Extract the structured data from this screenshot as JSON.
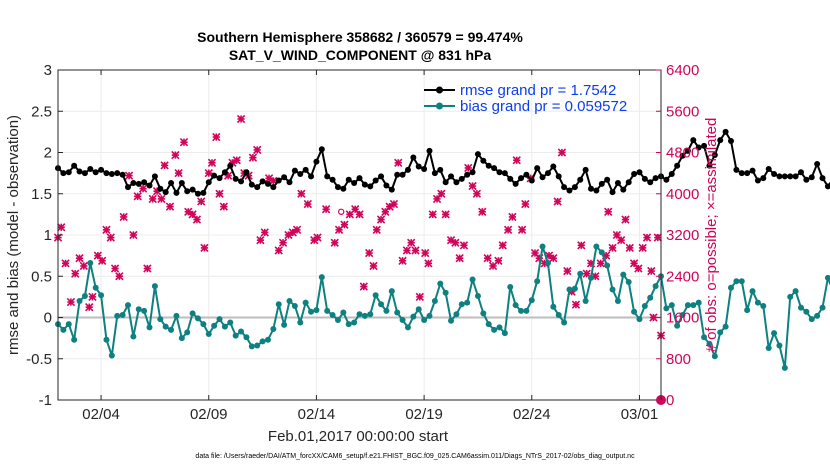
{
  "colors": {
    "rmse": "#000000",
    "bias": "#0f8080",
    "obs": "#d1045a",
    "legend_text": "#0b3df0",
    "zero_line": "#bdbdbd"
  },
  "chart_data": {
    "type": "line",
    "title_line1": "Southern Hemisphere 358682 / 360579 = 99.474%",
    "title_line2": "SAT_V_WIND_COMPONENT @ 831 hPa",
    "xlabel": "Feb.01,2017 00:00:00 start",
    "ylabel_left": "rmse and bias (model - observation)",
    "ylabel_right": "# of obs: o=possible; ×=assimilated",
    "footnote": "data file: /Users/raeder/DAI/ATM_forcXX/CAM6_setup/f.e21.FHIST_BGC.f09_025.CAM6assim.011/Diags_NTrS_2017-02/obs_diag_output.nc",
    "xlim": [
      1,
      29
    ],
    "ylim_left": [
      -1,
      3
    ],
    "ylim_right": [
      0,
      6400
    ],
    "x_ticks": [
      3,
      8,
      13,
      18,
      23,
      28
    ],
    "x_tick_labels": [
      "02/04",
      "02/09",
      "02/14",
      "02/19",
      "02/24",
      "03/01"
    ],
    "y_left_ticks": [
      -1,
      -0.5,
      0,
      0.5,
      1,
      1.5,
      2,
      2.5,
      3
    ],
    "y_left_tick_labels": [
      "-1",
      "-0.5",
      "0",
      "0.5",
      "1",
      "1.5",
      "2",
      "2.5",
      "3"
    ],
    "y_right_ticks": [
      0,
      800,
      1600,
      2400,
      3200,
      4000,
      4800,
      5600,
      6400
    ],
    "y_right_tick_labels": [
      "0",
      "800",
      "1600",
      "2400",
      "3200",
      "4000",
      "4800",
      "5600",
      "6400"
    ],
    "legend": [
      {
        "name": "rmse grand pr = 1.7542",
        "series": "rmse"
      },
      {
        "name": "bias grand pr = 0.059572",
        "series": "bias"
      }
    ],
    "x_start": 1.0,
    "x_step": 0.25,
    "series": [
      {
        "name": "rmse",
        "values": [
          1.81,
          1.75,
          1.76,
          1.84,
          1.77,
          1.75,
          1.8,
          1.76,
          1.79,
          1.75,
          1.74,
          1.75,
          1.73,
          1.58,
          1.63,
          1.62,
          1.64,
          1.6,
          1.71,
          1.56,
          1.52,
          1.63,
          1.51,
          1.63,
          1.53,
          1.55,
          1.5,
          1.51,
          1.64,
          1.72,
          1.69,
          1.76,
          1.84,
          1.68,
          1.65,
          1.76,
          1.61,
          1.58,
          1.65,
          1.62,
          1.58,
          1.66,
          1.7,
          1.64,
          1.78,
          1.74,
          1.79,
          1.71,
          1.89,
          2.04,
          1.71,
          1.67,
          1.58,
          1.56,
          1.67,
          1.63,
          1.69,
          1.61,
          1.59,
          1.66,
          1.71,
          1.6,
          1.55,
          1.73,
          1.73,
          1.79,
          1.94,
          1.83,
          1.8,
          2.02,
          1.75,
          1.79,
          1.64,
          1.71,
          1.64,
          1.68,
          1.73,
          1.76,
          1.98,
          1.9,
          1.84,
          1.81,
          1.76,
          1.75,
          1.68,
          1.62,
          1.69,
          1.73,
          1.66,
          1.81,
          1.7,
          1.75,
          1.83,
          1.71,
          1.58,
          1.54,
          1.58,
          1.67,
          1.79,
          1.56,
          1.54,
          1.62,
          1.67,
          1.52,
          1.63,
          1.55,
          1.64,
          1.74,
          1.76,
          1.68,
          1.64,
          1.69,
          1.71,
          1.67,
          1.74,
          1.84,
          1.96,
          2.02,
          2.15,
          2.06,
          2.08,
          1.84,
          1.97,
          2.15,
          2.25,
          2.14,
          1.79,
          1.75,
          1.75,
          1.78,
          1.66,
          1.69,
          1.8,
          1.74,
          1.71,
          1.71,
          1.71,
          1.71,
          1.76,
          1.67,
          1.7,
          1.86,
          1.69,
          1.59,
          1.68,
          1.91,
          1.63,
          1.7,
          2.05,
          1.84,
          1.64,
          1.69,
          1.68,
          1.7,
          1.74,
          1.84,
          1.76,
          1.73,
          1.75,
          1.7,
          1.65,
          1.69,
          1.82,
          1.93,
          1.84,
          1.72,
          1.66
        ]
      },
      {
        "name": "bias",
        "values": [
          -0.08,
          -0.15,
          -0.08,
          -0.27,
          0.2,
          0.26,
          0.66,
          0.36,
          0.27,
          -0.27,
          -0.46,
          0.02,
          0.03,
          0.15,
          -0.23,
          0.1,
          0.08,
          -0.12,
          0.38,
          -0.02,
          -0.11,
          -0.15,
          0.02,
          -0.25,
          -0.18,
          0.05,
          -0.01,
          -0.08,
          -0.2,
          -0.1,
          -0.02,
          -0.11,
          -0.06,
          -0.22,
          -0.17,
          -0.24,
          -0.35,
          -0.34,
          -0.29,
          -0.27,
          -0.14,
          0.16,
          -0.09,
          0.2,
          0.14,
          -0.06,
          0.18,
          0.07,
          0.09,
          0.49,
          0.08,
          0.03,
          -0.03,
          0.06,
          -0.08,
          -0.06,
          0.04,
          0.02,
          0.04,
          0.27,
          0.16,
          0.08,
          0.32,
          0.06,
          -0.03,
          -0.12,
          0.01,
          0.1,
          -0.03,
          0.02,
          0.2,
          0.41,
          0.3,
          -0.04,
          0.04,
          0.16,
          0.18,
          0.46,
          0.26,
          0.05,
          -0.08,
          -0.15,
          -0.12,
          -0.19,
          0.37,
          0.15,
          0.08,
          0.08,
          0.21,
          0.44,
          0.86,
          0.66,
          0.13,
          0.03,
          -0.06,
          0.34,
          0.35,
          0.53,
          0.2,
          0.48,
          0.86,
          0.79,
          0.63,
          0.34,
          0.2,
          0.52,
          0.43,
          0.07,
          -0.02,
          0.14,
          0.24,
          0.38,
          0.5,
          0.11,
          0.15,
          -0.1,
          0.03,
          0.15,
          0.15,
          0.18,
          -0.24,
          -0.32,
          -0.47,
          -0.18,
          -0.11,
          0.36,
          0.44,
          0.44,
          0.09,
          0.32,
          0.18,
          0.14,
          -0.37,
          -0.19,
          -0.34,
          -0.61,
          0.25,
          0.32,
          0.12,
          0.07,
          -0.02,
          0.02,
          0.12,
          0.48,
          0.32,
          0.17,
          0.07,
          0.08,
          0.02,
          0.17,
          0.1,
          0.12,
          0.03,
          0.12,
          0.13,
          0.03,
          0.13,
          0.62,
          0.59,
          0.28,
          0.27,
          0.2,
          0.17,
          -0.06,
          -0.09,
          -0.17,
          -0.26,
          -0.09,
          0.05,
          0.05,
          0.18,
          0.17
        ]
      },
      {
        "name": "obs_assimilated",
        "points": [
          [
            1.0,
            3150
          ],
          [
            1.15,
            3350
          ],
          [
            1.35,
            2650
          ],
          [
            1.6,
            1900
          ],
          [
            1.8,
            2450
          ],
          [
            2.0,
            2750
          ],
          [
            2.2,
            2600
          ],
          [
            2.45,
            1800
          ],
          [
            2.6,
            2000
          ],
          [
            2.85,
            2800
          ],
          [
            3.05,
            2700
          ],
          [
            3.25,
            3300
          ],
          [
            3.45,
            3150
          ],
          [
            3.65,
            2550
          ],
          [
            3.85,
            2400
          ],
          [
            4.05,
            3550
          ],
          [
            4.3,
            4350
          ],
          [
            4.5,
            3200
          ],
          [
            4.7,
            3950
          ],
          [
            4.95,
            4100
          ],
          [
            5.15,
            2550
          ],
          [
            5.4,
            3900
          ],
          [
            5.6,
            4050
          ],
          [
            5.8,
            3900
          ],
          [
            5.95,
            4550
          ],
          [
            6.2,
            3750
          ],
          [
            6.45,
            4750
          ],
          [
            6.6,
            4400
          ],
          [
            6.85,
            5000
          ],
          [
            7.05,
            3650
          ],
          [
            7.25,
            3600
          ],
          [
            7.45,
            3500
          ],
          [
            7.65,
            3850
          ],
          [
            7.8,
            2950
          ],
          [
            8.0,
            4400
          ],
          [
            8.15,
            4600
          ],
          [
            8.35,
            5100
          ],
          [
            8.5,
            4000
          ],
          [
            8.7,
            3750
          ],
          [
            8.9,
            4350
          ],
          [
            9.1,
            4600
          ],
          [
            9.3,
            4650
          ],
          [
            9.5,
            5450
          ],
          [
            9.65,
            4400
          ],
          [
            9.85,
            4350
          ],
          [
            10.05,
            4700
          ],
          [
            10.25,
            4850
          ],
          [
            10.4,
            3100
          ],
          [
            10.6,
            3250
          ],
          [
            10.8,
            4300
          ],
          [
            11.0,
            4250
          ],
          [
            11.25,
            2900
          ],
          [
            11.45,
            3050
          ],
          [
            11.7,
            3200
          ],
          [
            11.9,
            3250
          ],
          [
            12.1,
            3300
          ],
          [
            12.3,
            4000
          ],
          [
            12.6,
            3800
          ],
          [
            12.9,
            3100
          ],
          [
            13.05,
            3150
          ],
          [
            13.45,
            3700
          ],
          [
            13.85,
            3050
          ],
          [
            14.05,
            3300
          ],
          [
            14.3,
            3400
          ],
          [
            14.55,
            3600
          ],
          [
            14.8,
            3700
          ],
          [
            15.0,
            3600
          ],
          [
            15.2,
            2200
          ],
          [
            15.45,
            2850
          ],
          [
            15.65,
            2600
          ],
          [
            15.8,
            3300
          ],
          [
            16.0,
            3500
          ],
          [
            16.2,
            3650
          ],
          [
            16.4,
            3750
          ],
          [
            16.6,
            3800
          ],
          [
            16.8,
            4600
          ],
          [
            17.0,
            2700
          ],
          [
            17.2,
            2900
          ],
          [
            17.4,
            3050
          ],
          [
            17.6,
            2900
          ],
          [
            17.8,
            2000
          ],
          [
            18.05,
            2850
          ],
          [
            18.2,
            2650
          ],
          [
            18.4,
            3600
          ],
          [
            18.6,
            3900
          ],
          [
            18.8,
            4000
          ],
          [
            19.0,
            3600
          ],
          [
            19.25,
            3100
          ],
          [
            19.45,
            3050
          ],
          [
            19.65,
            2750
          ],
          [
            19.85,
            3000
          ],
          [
            20.05,
            4500
          ],
          [
            20.25,
            4150
          ],
          [
            20.45,
            4000
          ],
          [
            20.7,
            3650
          ],
          [
            20.95,
            2750
          ],
          [
            21.2,
            2600
          ],
          [
            21.45,
            2700
          ],
          [
            21.65,
            3000
          ],
          [
            21.9,
            3300
          ],
          [
            22.1,
            3550
          ],
          [
            22.3,
            4650
          ],
          [
            22.55,
            3300
          ],
          [
            22.7,
            3800
          ],
          [
            22.95,
            4300
          ],
          [
            23.15,
            2850
          ],
          [
            23.35,
            2750
          ],
          [
            23.6,
            2650
          ],
          [
            23.8,
            2800
          ],
          [
            24.0,
            2750
          ],
          [
            24.2,
            3850
          ],
          [
            24.4,
            4800
          ],
          [
            24.65,
            2500
          ],
          [
            24.85,
            2100
          ],
          [
            25.05,
            1850
          ],
          [
            25.3,
            3000
          ],
          [
            25.55,
            2450
          ],
          [
            25.75,
            2650
          ],
          [
            25.95,
            2400
          ],
          [
            26.2,
            2650
          ],
          [
            26.45,
            2800
          ],
          [
            26.55,
            3650
          ],
          [
            26.75,
            2950
          ],
          [
            26.95,
            3200
          ],
          [
            27.15,
            3100
          ],
          [
            27.35,
            3500
          ],
          [
            27.55,
            2950
          ],
          [
            27.75,
            2650
          ],
          [
            27.95,
            2550
          ],
          [
            28.15,
            2950
          ],
          [
            28.35,
            3150
          ],
          [
            28.55,
            2500
          ],
          [
            28.65,
            1600
          ],
          [
            28.85,
            3150
          ],
          [
            29.0,
            1250
          ]
        ]
      },
      {
        "name": "obs_possible",
        "points": [
          [
            14.15,
            3650
          ]
        ]
      }
    ]
  }
}
